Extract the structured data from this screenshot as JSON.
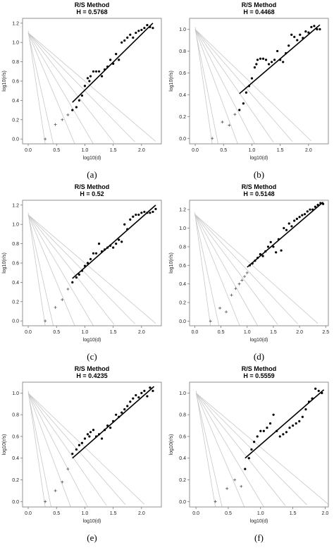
{
  "chart_data": [
    {
      "type": "scatter",
      "panel": "(a)",
      "title": "R/S Method",
      "subtitle": "H = 0.5768",
      "xlabel": "log10(d)",
      "ylabel": "log10(r/s)",
      "xlim": [
        -0.1,
        2.35
      ],
      "ylim": [
        -0.05,
        1.25
      ],
      "xticks": [
        0.0,
        0.5,
        1.0,
        1.5,
        2.0
      ],
      "yticks": [
        0.0,
        0.2,
        0.4,
        0.6,
        0.8,
        1.0,
        1.2
      ],
      "guide_slopes": [
        2.6,
        1.4,
        1.0,
        0.75,
        0.6,
        0.5
      ],
      "guide_intercept": 1.1,
      "fit_line": {
        "x": [
          0.78,
          2.2
        ],
        "y": [
          0.38,
          1.2
        ]
      },
      "crosses": {
        "x": [
          0.3,
          0.48,
          0.6,
          0.7
        ],
        "y": [
          0.0,
          0.15,
          0.2,
          0.25
        ]
      },
      "points": {
        "x": [
          0.78,
          0.85,
          0.9,
          0.95,
          1.0,
          1.05,
          1.08,
          1.1,
          1.15,
          1.2,
          1.25,
          1.3,
          1.35,
          1.4,
          1.45,
          1.5,
          1.55,
          1.6,
          1.65,
          1.7,
          1.75,
          1.8,
          1.85,
          1.9,
          1.95,
          2.0,
          2.05,
          2.1,
          2.15,
          2.2
        ],
        "y": [
          0.3,
          0.33,
          0.4,
          0.45,
          0.55,
          0.63,
          0.6,
          0.65,
          0.7,
          0.7,
          0.7,
          0.65,
          0.72,
          0.75,
          0.82,
          0.78,
          0.88,
          0.82,
          1.0,
          1.02,
          1.05,
          1.08,
          1.05,
          1.1,
          1.12,
          1.13,
          1.15,
          1.18,
          1.16,
          1.15
        ]
      }
    },
    {
      "type": "scatter",
      "panel": "(b)",
      "title": "R/S Method",
      "subtitle": "H = 0.4468",
      "xlabel": "log10(d)",
      "ylabel": "log10(r/s)",
      "xlim": [
        -0.1,
        2.35
      ],
      "ylim": [
        -0.05,
        1.1
      ],
      "xticks": [
        0.0,
        0.5,
        1.0,
        1.5,
        2.0
      ],
      "yticks": [
        0.0,
        0.2,
        0.4,
        0.6,
        0.8,
        1.0
      ],
      "guide_slopes": [
        2.6,
        1.4,
        1.0,
        0.75,
        0.6,
        0.5
      ],
      "guide_intercept": 1.0,
      "fit_line": {
        "x": [
          0.78,
          2.2
        ],
        "y": [
          0.41,
          1.04
        ]
      },
      "crosses": {
        "x": [
          0.3,
          0.48,
          0.6,
          0.7
        ],
        "y": [
          0.0,
          0.15,
          0.12,
          0.22
        ]
      },
      "points": {
        "x": [
          0.78,
          0.85,
          0.9,
          0.95,
          1.0,
          1.05,
          1.08,
          1.1,
          1.15,
          1.2,
          1.25,
          1.3,
          1.35,
          1.4,
          1.45,
          1.5,
          1.55,
          1.6,
          1.65,
          1.7,
          1.75,
          1.8,
          1.85,
          1.9,
          1.95,
          2.0,
          2.05,
          2.1,
          2.15,
          2.2
        ],
        "y": [
          0.26,
          0.32,
          0.42,
          0.48,
          0.55,
          0.65,
          0.68,
          0.72,
          0.73,
          0.73,
          0.72,
          0.68,
          0.7,
          0.72,
          0.8,
          0.72,
          0.7,
          0.78,
          0.85,
          0.95,
          0.93,
          0.9,
          0.95,
          0.92,
          0.98,
          0.97,
          1.02,
          1.03,
          1.0,
          1.0
        ]
      }
    },
    {
      "type": "scatter",
      "panel": "(c)",
      "title": "R/S Method",
      "subtitle": "H = 0.52",
      "xlabel": "log10(d)",
      "ylabel": "log10(r/s)",
      "xlim": [
        -0.1,
        2.35
      ],
      "ylim": [
        -0.05,
        1.25
      ],
      "xticks": [
        0.0,
        0.5,
        1.0,
        1.5,
        2.0
      ],
      "yticks": [
        0.0,
        0.2,
        0.4,
        0.6,
        0.8,
        1.0,
        1.2
      ],
      "guide_slopes": [
        2.6,
        1.4,
        1.0,
        0.75,
        0.6,
        0.5
      ],
      "guide_intercept": 1.1,
      "fit_line": {
        "x": [
          0.78,
          2.25
        ],
        "y": [
          0.44,
          1.2
        ]
      },
      "crosses": {
        "x": [
          0.3,
          0.48,
          0.6,
          0.7
        ],
        "y": [
          0.0,
          0.14,
          0.22,
          0.33
        ]
      },
      "points": {
        "x": [
          0.78,
          0.85,
          0.9,
          0.95,
          1.0,
          1.05,
          1.1,
          1.15,
          1.2,
          1.25,
          1.3,
          1.35,
          1.4,
          1.45,
          1.5,
          1.55,
          1.6,
          1.65,
          1.7,
          1.75,
          1.8,
          1.85,
          1.9,
          1.95,
          2.0,
          2.05,
          2.1,
          2.15,
          2.2,
          2.25
        ],
        "y": [
          0.4,
          0.45,
          0.48,
          0.52,
          0.57,
          0.6,
          0.64,
          0.7,
          0.7,
          0.8,
          0.72,
          0.74,
          0.76,
          0.78,
          0.76,
          0.8,
          0.84,
          0.82,
          1.0,
          0.95,
          1.05,
          1.08,
          1.1,
          1.1,
          1.12,
          1.13,
          1.12,
          1.12,
          1.13,
          1.16
        ]
      }
    },
    {
      "type": "scatter",
      "panel": "(d)",
      "title": "R/S Method",
      "subtitle": "H = 0.5148",
      "xlabel": "log10(d)",
      "ylabel": "log10(r/s)",
      "xlim": [
        -0.1,
        2.55
      ],
      "ylim": [
        -0.05,
        1.3
      ],
      "xticks": [
        0.0,
        0.5,
        1.0,
        1.5,
        2.0,
        2.5
      ],
      "yticks": [
        0.0,
        0.2,
        0.4,
        0.6,
        0.8,
        1.0,
        1.2
      ],
      "guide_slopes": [
        2.6,
        1.4,
        1.0,
        0.75,
        0.6,
        0.5
      ],
      "guide_intercept": 1.15,
      "fit_line": {
        "x": [
          1.0,
          2.45
        ],
        "y": [
          0.58,
          1.28
        ]
      },
      "crosses": {
        "x": [
          0.3,
          0.48,
          0.6,
          0.7,
          0.78,
          0.85,
          0.9,
          0.95,
          1.0
        ],
        "y": [
          0.0,
          0.14,
          0.1,
          0.28,
          0.35,
          0.4,
          0.44,
          0.48,
          0.52
        ]
      },
      "points": {
        "x": [
          1.05,
          1.1,
          1.15,
          1.2,
          1.25,
          1.3,
          1.35,
          1.4,
          1.45,
          1.5,
          1.55,
          1.6,
          1.65,
          1.7,
          1.75,
          1.8,
          1.85,
          1.9,
          1.95,
          2.0,
          2.05,
          2.1,
          2.15,
          2.2,
          2.25,
          2.3,
          2.35,
          2.4,
          2.45
        ],
        "y": [
          0.6,
          0.62,
          0.65,
          0.68,
          0.72,
          0.7,
          0.75,
          0.8,
          0.85,
          0.8,
          0.74,
          0.88,
          0.76,
          1.0,
          0.98,
          1.05,
          1.02,
          1.08,
          1.1,
          1.12,
          1.14,
          1.15,
          1.18,
          1.2,
          1.2,
          1.23,
          1.25,
          1.27,
          1.26
        ]
      }
    },
    {
      "type": "scatter",
      "panel": "(e)",
      "title": "R/S Method",
      "subtitle": "H = 0.4235",
      "xlabel": "log10(d)",
      "ylabel": "log10(r/s)",
      "xlim": [
        -0.1,
        2.35
      ],
      "ylim": [
        -0.05,
        1.1
      ],
      "xticks": [
        0.0,
        0.5,
        1.0,
        1.5,
        2.0
      ],
      "yticks": [
        0.0,
        0.2,
        0.4,
        0.6,
        0.8,
        1.0
      ],
      "guide_slopes": [
        2.6,
        1.4,
        1.0,
        0.75,
        0.6,
        0.5
      ],
      "guide_intercept": 1.0,
      "fit_line": {
        "x": [
          0.78,
          2.22
        ],
        "y": [
          0.4,
          1.06
        ]
      },
      "crosses": {
        "x": [
          0.3,
          0.48,
          0.6,
          0.7
        ],
        "y": [
          0.0,
          0.1,
          0.18,
          0.3
        ]
      },
      "points": {
        "x": [
          0.78,
          0.85,
          0.9,
          0.95,
          1.0,
          1.05,
          1.08,
          1.1,
          1.15,
          1.2,
          1.25,
          1.3,
          1.35,
          1.4,
          1.45,
          1.5,
          1.55,
          1.6,
          1.65,
          1.7,
          1.75,
          1.8,
          1.85,
          1.9,
          1.95,
          2.0,
          2.05,
          2.1,
          2.15,
          2.2
        ],
        "y": [
          0.44,
          0.48,
          0.52,
          0.54,
          0.58,
          0.62,
          0.6,
          0.64,
          0.66,
          0.6,
          0.62,
          0.58,
          0.66,
          0.7,
          0.68,
          0.74,
          0.8,
          0.78,
          0.82,
          0.85,
          0.88,
          0.92,
          0.95,
          0.98,
          0.96,
          1.0,
          1.02,
          0.97,
          1.05,
          1.02
        ]
      }
    },
    {
      "type": "scatter",
      "panel": "(f)",
      "title": "R/S Method",
      "subtitle": "H = 0.5559",
      "xlabel": "log10(d)",
      "ylabel": "log10(r/s)",
      "xlim": [
        -0.1,
        2.05
      ],
      "ylim": [
        -0.05,
        1.1
      ],
      "xticks": [
        0.0,
        0.5,
        1.0,
        1.5,
        2.0
      ],
      "yticks": [
        0.0,
        0.2,
        0.4,
        0.6,
        0.8,
        1.0
      ],
      "guide_slopes": [
        2.6,
        1.4,
        1.0,
        0.75,
        0.6,
        0.5
      ],
      "guide_intercept": 1.0,
      "fit_line": {
        "x": [
          0.76,
          1.98
        ],
        "y": [
          0.4,
          1.03
        ]
      },
      "crosses": {
        "x": [
          0.3,
          0.48,
          0.6,
          0.7
        ],
        "y": [
          0.0,
          0.12,
          0.2,
          0.14
        ]
      },
      "points": {
        "x": [
          0.76,
          0.82,
          0.86,
          0.9,
          0.95,
          1.0,
          1.05,
          1.1,
          1.15,
          1.2,
          1.25,
          1.3,
          1.35,
          1.4,
          1.45,
          1.5,
          1.55,
          1.6,
          1.65,
          1.7,
          1.75,
          1.8,
          1.85,
          1.9,
          1.95
        ],
        "y": [
          0.3,
          0.4,
          0.48,
          0.55,
          0.6,
          0.65,
          0.65,
          0.68,
          0.72,
          0.8,
          0.65,
          0.6,
          0.62,
          0.64,
          0.68,
          0.7,
          0.72,
          0.74,
          0.78,
          0.85,
          0.92,
          0.95,
          1.04,
          1.02,
          1.0
        ]
      }
    }
  ]
}
